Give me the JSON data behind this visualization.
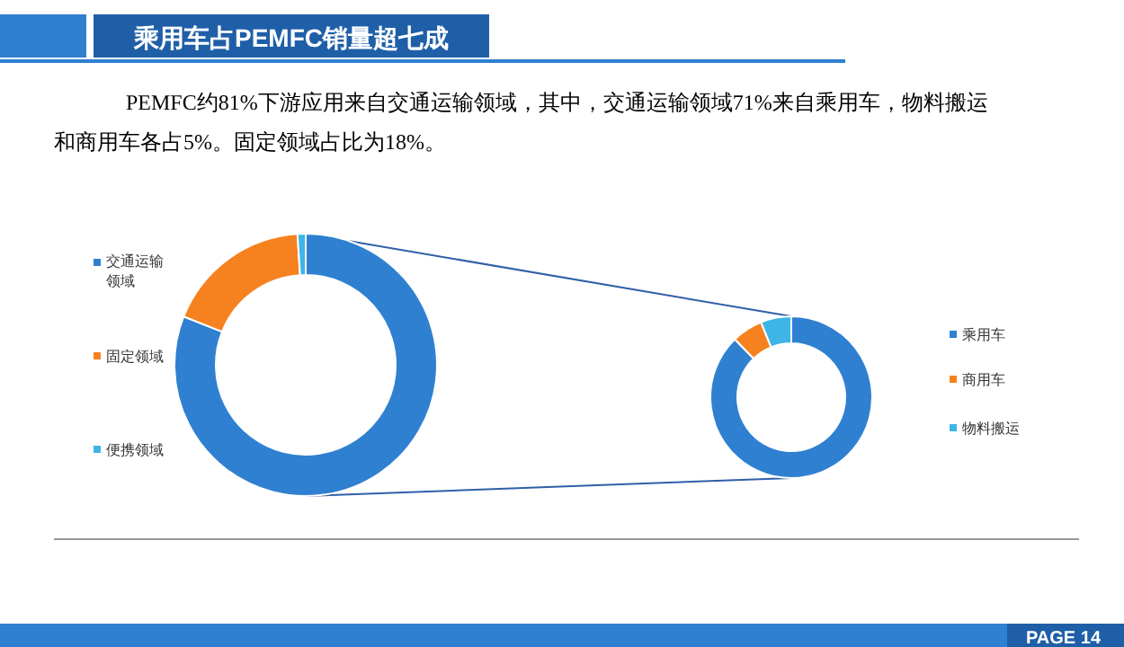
{
  "chart_data": [
    {
      "type": "donut",
      "title": "乘用车占PEMFC销量超七成",
      "subtitle": "PEMFC约81%下游应用来自交通运输领域，其中，交通运输领域71%来自乘用车，物料搬运和商用车各占5%。固定领域占比为18%。",
      "categories": [
        "交通运输领域",
        "固定领域",
        "便携领域"
      ],
      "values": [
        81,
        18,
        1
      ],
      "colors": [
        "#2f80d1",
        "#f5821f",
        "#3db5e6"
      ],
      "legend": "left",
      "annotations": [
        "PAGE 14"
      ]
    },
    {
      "type": "donut",
      "categories": [
        "乘用车",
        "商用车",
        "物料搬运"
      ],
      "values": [
        87.7,
        6.2,
        6.1
      ],
      "colors": [
        "#2f80d1",
        "#f5821f",
        "#3db5e6"
      ],
      "legend": "right"
    }
  ]
}
